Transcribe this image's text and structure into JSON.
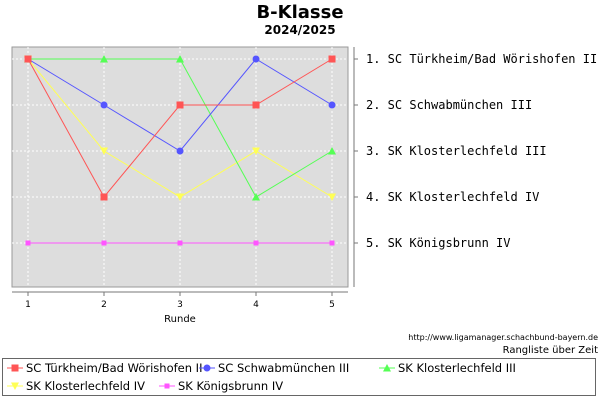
{
  "title": "B-Klasse",
  "subtitle": "2024/2025",
  "source_url": "http://www.ligamanager.schachbund-bayern.de",
  "ranking_note": "Rangliste über Zeit",
  "chart_data": {
    "type": "line",
    "title": "B-Klasse",
    "subtitle": "2024/2025",
    "xlabel": "Runde",
    "ylabel": "",
    "x": [
      1,
      2,
      3,
      4,
      5
    ],
    "xlim": [
      1,
      5
    ],
    "ylim": [
      1,
      5
    ],
    "y_inverted": true,
    "grid": true,
    "rank_labels": [
      "1. SC Türkheim/Bad Wörishofen II",
      "2. SC Schwabmünchen III",
      "3. SK Klosterlechfeld III",
      "4. SK Klosterlechfeld IV",
      "5. SK Königsbrunn IV"
    ],
    "legend_position": "bottom",
    "series": [
      {
        "name": "SC Türkheim/Bad Wörishofen II",
        "values": [
          1,
          4,
          2,
          2,
          1
        ],
        "color": "#ff5555",
        "marker": "square"
      },
      {
        "name": "SC Schwabmünchen III",
        "values": [
          1,
          2,
          3,
          1,
          2
        ],
        "color": "#5555ff",
        "marker": "circle"
      },
      {
        "name": "SK Klosterlechfeld III",
        "values": [
          1,
          1,
          1,
          4,
          3
        ],
        "color": "#55ff55",
        "marker": "triangle"
      },
      {
        "name": "SK Klosterlechfeld IV",
        "values": [
          1,
          3,
          4,
          3,
          4
        ],
        "color": "#ffff55",
        "marker": "triangle-down"
      },
      {
        "name": "SK Königsbrunn IV",
        "values": [
          5,
          5,
          5,
          5,
          5
        ],
        "color": "#ff55ff",
        "marker": "small-square"
      }
    ]
  }
}
